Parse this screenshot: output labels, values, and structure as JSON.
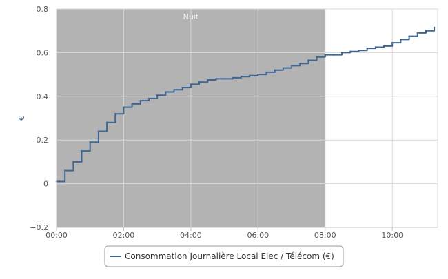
{
  "chart_data": {
    "type": "line",
    "title": "",
    "xlabel": "",
    "ylabel": "€",
    "x_range_hours": [
      0,
      11.35
    ],
    "ylim": [
      -0.2,
      0.8
    ],
    "grid": true,
    "legend_position": "bottom-center",
    "x_ticks": [
      {
        "hour": 0,
        "label": "00:00"
      },
      {
        "hour": 2,
        "label": "02:00"
      },
      {
        "hour": 4,
        "label": "04:00"
      },
      {
        "hour": 6,
        "label": "06:00"
      },
      {
        "hour": 8,
        "label": "08:00"
      },
      {
        "hour": 10,
        "label": "10:00"
      }
    ],
    "y_ticks": [
      {
        "value": -0.2,
        "label": "−0.2"
      },
      {
        "value": 0,
        "label": "0"
      },
      {
        "value": 0.2,
        "label": "0.2"
      },
      {
        "value": 0.4,
        "label": "0.4"
      },
      {
        "value": 0.6,
        "label": "0.6"
      },
      {
        "value": 0.8,
        "label": "0.8"
      }
    ],
    "bands": [
      {
        "label": "Nuit",
        "from_hour": 0,
        "to_hour": 8,
        "color": "#b3b3b3"
      }
    ],
    "series": [
      {
        "name": "Consommation Journalière Local Elec / Télécom (€)",
        "color": "#3d6694",
        "points": [
          [
            0.0,
            0.01
          ],
          [
            0.25,
            0.06
          ],
          [
            0.5,
            0.1
          ],
          [
            0.75,
            0.15
          ],
          [
            1.0,
            0.19
          ],
          [
            1.25,
            0.24
          ],
          [
            1.5,
            0.28
          ],
          [
            1.75,
            0.32
          ],
          [
            2.0,
            0.35
          ],
          [
            2.25,
            0.365
          ],
          [
            2.5,
            0.38
          ],
          [
            2.75,
            0.39
          ],
          [
            3.0,
            0.405
          ],
          [
            3.25,
            0.42
          ],
          [
            3.5,
            0.43
          ],
          [
            3.75,
            0.44
          ],
          [
            4.0,
            0.455
          ],
          [
            4.25,
            0.465
          ],
          [
            4.5,
            0.475
          ],
          [
            4.75,
            0.48
          ],
          [
            5.0,
            0.48
          ],
          [
            5.25,
            0.485
          ],
          [
            5.5,
            0.49
          ],
          [
            5.75,
            0.495
          ],
          [
            6.0,
            0.5
          ],
          [
            6.25,
            0.51
          ],
          [
            6.5,
            0.52
          ],
          [
            6.75,
            0.53
          ],
          [
            7.0,
            0.54
          ],
          [
            7.25,
            0.55
          ],
          [
            7.5,
            0.565
          ],
          [
            7.75,
            0.58
          ],
          [
            8.0,
            0.59
          ],
          [
            8.25,
            0.59
          ],
          [
            8.5,
            0.6
          ],
          [
            8.75,
            0.605
          ],
          [
            9.0,
            0.61
          ],
          [
            9.25,
            0.62
          ],
          [
            9.5,
            0.625
          ],
          [
            9.75,
            0.63
          ],
          [
            10.0,
            0.645
          ],
          [
            10.25,
            0.66
          ],
          [
            10.5,
            0.675
          ],
          [
            10.75,
            0.69
          ],
          [
            11.0,
            0.7
          ],
          [
            11.25,
            0.715
          ]
        ]
      }
    ]
  }
}
